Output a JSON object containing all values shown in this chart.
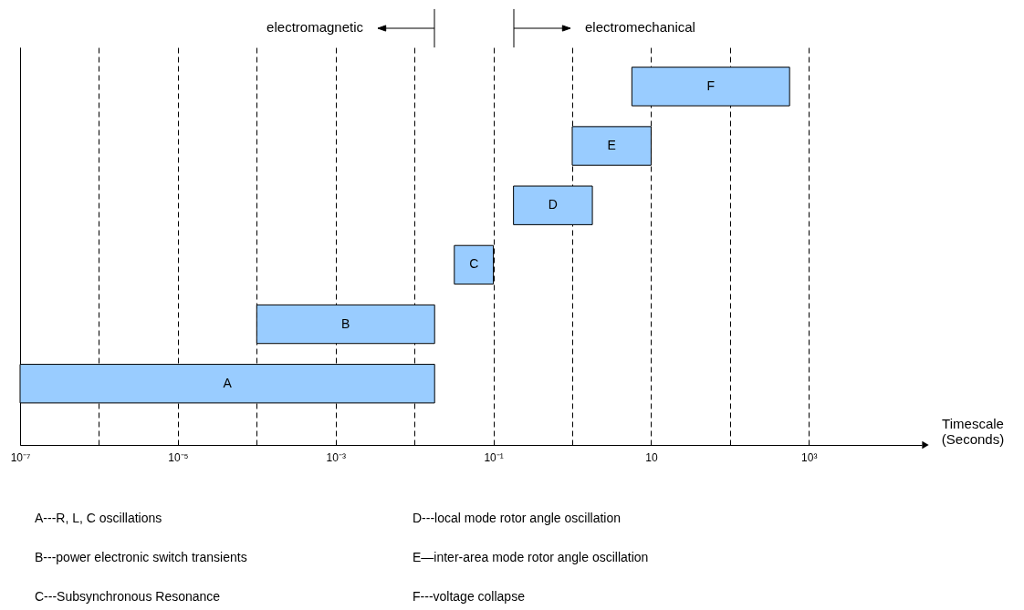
{
  "chart_data": {
    "type": "bar",
    "orientation": "horizontal",
    "log": "x",
    "grid": "x",
    "tick_labels": "x",
    "color": "#99ccff",
    "categories": [
      "F",
      "E",
      "D",
      "C",
      "B",
      "A"
    ],
    "base": [
      5.7,
      1,
      0.18,
      0.032,
      0.0001,
      1e-07
    ],
    "values": [
      564,
      9,
      1.62,
      0.068,
      0.0179,
      0.018
    ],
    "xlim": [
      1e-07,
      27000
    ],
    "xticks": [
      {
        "value": 1e-07,
        "label": "10⁻⁷"
      },
      {
        "value": 1e-06,
        "label": null
      },
      {
        "value": 1e-05,
        "label": "10⁻⁵"
      },
      {
        "value": 0.0001,
        "label": null
      },
      {
        "value": 0.001,
        "label": "10⁻³"
      },
      {
        "value": 0.01,
        "label": null
      },
      {
        "value": 0.1,
        "label": "10⁻¹"
      },
      {
        "value": 1,
        "label": null
      },
      10,
      {
        "value": 100,
        "label": null
      },
      {
        "value": 1000,
        "label": "10³"
      }
    ],
    "xlabel": "Timescale\n(Seconds)",
    "annotations": [
      "electromagnetic",
      "electromechanical",
      "A---R, L, C oscillations",
      "D---local mode rotor angle oscillation",
      "B---power electronic switch transients",
      "E—inter-area mode rotor angle oscillation",
      "C---Subsynchronous Resonance",
      "F---voltage collapse"
    ]
  }
}
